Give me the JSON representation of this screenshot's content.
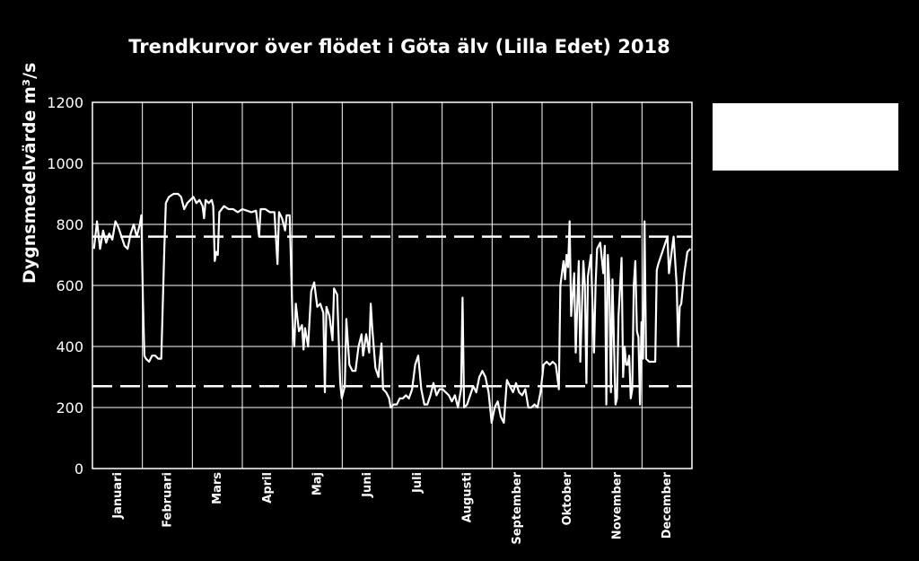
{
  "chart_data": {
    "type": "line",
    "title": "Trendkurvor över flödet i Göta älv (Lilla Edet) 2018",
    "ylabel": "Dygnsmedelvärde m³/s",
    "ylim": [
      0,
      1200
    ],
    "yticks": [
      0,
      200,
      400,
      600,
      800,
      1000,
      1200
    ],
    "months": [
      "Januari",
      "Februari",
      "Mars",
      "April",
      "Maj",
      "Juni",
      "Juli",
      "Augusti",
      "September",
      "Oktober",
      "November",
      "December"
    ],
    "grid": true,
    "reference_lines": [
      760,
      270
    ],
    "series": [
      {
        "points": [
          [
            1,
            720
          ],
          [
            3,
            810
          ],
          [
            5,
            720
          ],
          [
            7,
            780
          ],
          [
            9,
            740
          ],
          [
            11,
            770
          ],
          [
            13,
            750
          ],
          [
            15,
            810
          ],
          [
            17,
            790
          ],
          [
            19,
            760
          ],
          [
            21,
            730
          ],
          [
            23,
            720
          ],
          [
            25,
            770
          ],
          [
            27,
            800
          ],
          [
            29,
            760
          ],
          [
            31,
            800
          ],
          [
            32,
            830
          ],
          [
            33,
            560
          ],
          [
            34,
            370
          ],
          [
            35,
            360
          ],
          [
            37,
            350
          ],
          [
            39,
            370
          ],
          [
            41,
            370
          ],
          [
            43,
            360
          ],
          [
            45,
            360
          ],
          [
            47,
            720
          ],
          [
            48,
            870
          ],
          [
            50,
            890
          ],
          [
            53,
            900
          ],
          [
            56,
            900
          ],
          [
            58,
            890
          ],
          [
            60,
            850
          ],
          [
            62,
            870
          ],
          [
            64,
            880
          ],
          [
            66,
            890
          ],
          [
            68,
            870
          ],
          [
            70,
            880
          ],
          [
            72,
            860
          ],
          [
            73,
            820
          ],
          [
            74,
            880
          ],
          [
            76,
            870
          ],
          [
            78,
            880
          ],
          [
            79,
            860
          ],
          [
            80,
            680
          ],
          [
            81,
            710
          ],
          [
            82,
            700
          ],
          [
            83,
            840
          ],
          [
            86,
            860
          ],
          [
            89,
            850
          ],
          [
            92,
            850
          ],
          [
            95,
            840
          ],
          [
            98,
            850
          ],
          [
            101,
            845
          ],
          [
            104,
            840
          ],
          [
            107,
            845
          ],
          [
            109,
            760
          ],
          [
            110,
            850
          ],
          [
            113,
            850
          ],
          [
            116,
            840
          ],
          [
            119,
            840
          ],
          [
            121,
            670
          ],
          [
            122,
            840
          ],
          [
            124,
            820
          ],
          [
            126,
            780
          ],
          [
            127,
            830
          ],
          [
            129,
            830
          ],
          [
            131,
            460
          ],
          [
            132,
            400
          ],
          [
            133,
            540
          ],
          [
            135,
            450
          ],
          [
            137,
            470
          ],
          [
            138,
            390
          ],
          [
            139,
            460
          ],
          [
            141,
            400
          ],
          [
            143,
            580
          ],
          [
            145,
            610
          ],
          [
            147,
            530
          ],
          [
            149,
            540
          ],
          [
            151,
            510
          ],
          [
            152,
            250
          ],
          [
            153,
            530
          ],
          [
            155,
            500
          ],
          [
            157,
            420
          ],
          [
            158,
            590
          ],
          [
            160,
            570
          ],
          [
            162,
            280
          ],
          [
            163,
            230
          ],
          [
            165,
            270
          ],
          [
            166,
            490
          ],
          [
            168,
            340
          ],
          [
            170,
            320
          ],
          [
            172,
            320
          ],
          [
            174,
            400
          ],
          [
            176,
            440
          ],
          [
            177,
            370
          ],
          [
            179,
            440
          ],
          [
            181,
            380
          ],
          [
            182,
            540
          ],
          [
            183,
            460
          ],
          [
            185,
            330
          ],
          [
            187,
            300
          ],
          [
            188,
            360
          ],
          [
            189,
            410
          ],
          [
            190,
            260
          ],
          [
            192,
            250
          ],
          [
            194,
            230
          ],
          [
            195,
            200
          ],
          [
            197,
            210
          ],
          [
            199,
            210
          ],
          [
            201,
            230
          ],
          [
            203,
            230
          ],
          [
            205,
            240
          ],
          [
            207,
            230
          ],
          [
            209,
            260
          ],
          [
            211,
            340
          ],
          [
            213,
            370
          ],
          [
            215,
            260
          ],
          [
            217,
            210
          ],
          [
            219,
            210
          ],
          [
            221,
            240
          ],
          [
            223,
            280
          ],
          [
            225,
            240
          ],
          [
            227,
            260
          ],
          [
            229,
            260
          ],
          [
            231,
            250
          ],
          [
            233,
            240
          ],
          [
            235,
            220
          ],
          [
            237,
            240
          ],
          [
            239,
            200
          ],
          [
            241,
            260
          ],
          [
            242,
            560
          ],
          [
            243,
            200
          ],
          [
            245,
            210
          ],
          [
            247,
            240
          ],
          [
            249,
            270
          ],
          [
            251,
            250
          ],
          [
            253,
            300
          ],
          [
            255,
            320
          ],
          [
            257,
            300
          ],
          [
            259,
            250
          ],
          [
            261,
            150
          ],
          [
            263,
            200
          ],
          [
            265,
            220
          ],
          [
            267,
            170
          ],
          [
            269,
            150
          ],
          [
            271,
            290
          ],
          [
            273,
            270
          ],
          [
            275,
            250
          ],
          [
            277,
            280
          ],
          [
            279,
            250
          ],
          [
            281,
            240
          ],
          [
            283,
            260
          ],
          [
            285,
            200
          ],
          [
            287,
            200
          ],
          [
            289,
            210
          ],
          [
            291,
            200
          ],
          [
            293,
            250
          ],
          [
            295,
            340
          ],
          [
            297,
            350
          ],
          [
            299,
            340
          ],
          [
            301,
            350
          ],
          [
            303,
            340
          ],
          [
            305,
            260
          ],
          [
            306,
            600
          ],
          [
            308,
            680
          ],
          [
            309,
            620
          ],
          [
            310,
            700
          ],
          [
            311,
            660
          ],
          [
            312,
            810
          ],
          [
            313,
            500
          ],
          [
            315,
            640
          ],
          [
            316,
            380
          ],
          [
            318,
            680
          ],
          [
            319,
            350
          ],
          [
            321,
            680
          ],
          [
            322,
            600
          ],
          [
            323,
            280
          ],
          [
            324,
            630
          ],
          [
            326,
            700
          ],
          [
            328,
            380
          ],
          [
            329,
            600
          ],
          [
            330,
            720
          ],
          [
            332,
            740
          ],
          [
            334,
            640
          ],
          [
            335,
            730
          ],
          [
            336,
            210
          ],
          [
            337,
            700
          ],
          [
            338,
            600
          ],
          [
            339,
            250
          ],
          [
            340,
            620
          ],
          [
            342,
            210
          ],
          [
            343,
            230
          ],
          [
            344,
            500
          ],
          [
            346,
            690
          ],
          [
            347,
            300
          ],
          [
            348,
            400
          ],
          [
            349,
            340
          ],
          [
            350,
            340
          ],
          [
            351,
            370
          ],
          [
            352,
            230
          ],
          [
            353,
            260
          ],
          [
            354,
            600
          ],
          [
            355,
            680
          ],
          [
            356,
            450
          ],
          [
            357,
            430
          ],
          [
            358,
            210
          ],
          [
            359,
            480
          ],
          [
            360,
            360
          ],
          [
            361,
            810
          ],
          [
            362,
            360
          ],
          [
            364,
            350
          ],
          [
            366,
            350
          ],
          [
            368,
            350
          ],
          [
            369,
            650
          ],
          [
            370,
            670
          ],
          [
            372,
            700
          ],
          [
            374,
            730
          ],
          [
            376,
            760
          ],
          [
            377,
            640
          ],
          [
            379,
            720
          ],
          [
            380,
            760
          ],
          [
            382,
            600
          ],
          [
            383,
            400
          ],
          [
            384,
            530
          ],
          [
            385,
            540
          ],
          [
            387,
            640
          ],
          [
            389,
            710
          ],
          [
            391,
            720
          ]
        ]
      }
    ]
  }
}
